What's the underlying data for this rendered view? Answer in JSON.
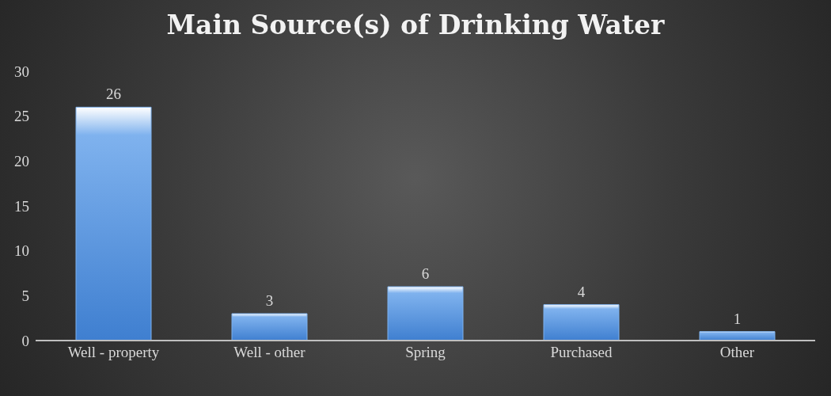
{
  "chart_data": {
    "type": "bar",
    "title": "Main Source(s) of Drinking Water",
    "categories": [
      "Well - property",
      "Well - other",
      "Spring",
      "Purchased",
      "Other"
    ],
    "values": [
      26,
      3,
      6,
      4,
      1
    ],
    "color": "#7fb2ee",
    "ylim": [
      0,
      30
    ],
    "yticks": [
      0,
      5,
      10,
      15,
      20,
      25,
      30
    ],
    "grid": false,
    "data_labels": true
  }
}
